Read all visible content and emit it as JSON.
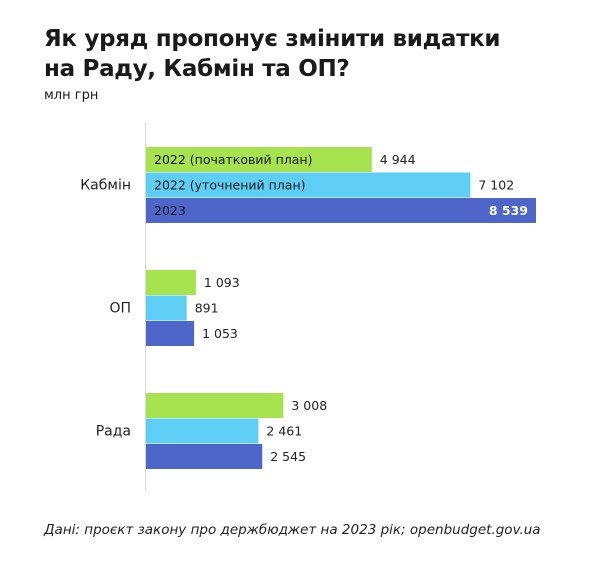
{
  "chart_data": {
    "type": "bar",
    "orientation": "horizontal",
    "title": "Як уряд пропонує змінити видатки на Раду, Кабмін та ОП?",
    "ylabel": "млн грн",
    "categories": [
      "Кабмін",
      "ОП",
      "Рада"
    ],
    "series": [
      {
        "name": "2022 (початковий план)",
        "color": "#a7e34f",
        "values": [
          4944,
          1093,
          3008
        ],
        "labels": [
          "4 944",
          "1 093",
          "3 008"
        ]
      },
      {
        "name": "2022 (уточнений план)",
        "color": "#5ecef4",
        "values": [
          7102,
          891,
          2461
        ],
        "labels": [
          "7 102",
          "891",
          "2 461"
        ]
      },
      {
        "name": "2023",
        "color": "#4e65ca",
        "values": [
          8539,
          1053,
          2545
        ],
        "labels": [
          "8 539",
          "1 053",
          "2 545"
        ]
      }
    ],
    "xlim": [
      0,
      8539
    ],
    "grid": false,
    "legend": "inline in first category bars"
  },
  "title_line1": "Як уряд пропонує змінити видатки",
  "title_line2": "на Раду, Кабмін та ОП?",
  "unit": "млн грн",
  "source": "Дані: проєкт закону про держбюджет на 2023 рік; openbudget.gov.ua"
}
